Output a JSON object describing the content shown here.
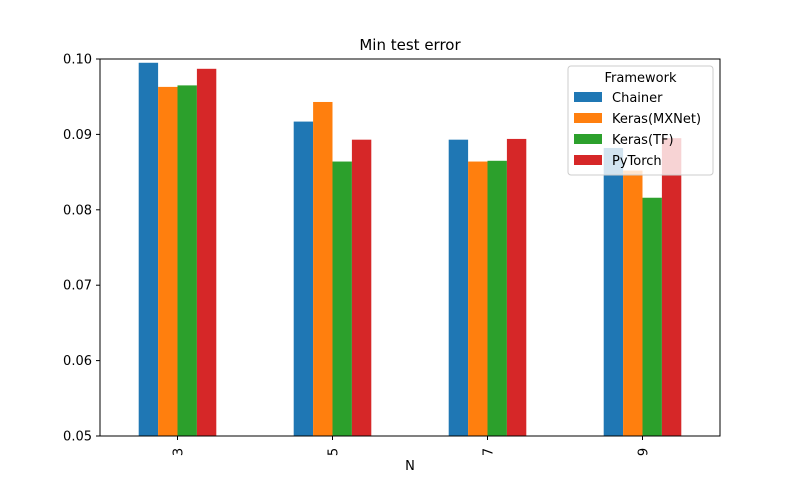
{
  "chart_data": {
    "type": "bar",
    "title": "Min test error",
    "xlabel": "N",
    "ylabel": "",
    "categories": [
      "3",
      "5",
      "7",
      "9"
    ],
    "ylim": [
      0.05,
      0.1
    ],
    "yticks": [
      "0.05",
      "0.06",
      "0.07",
      "0.08",
      "0.09",
      "0.10"
    ],
    "legend_title": "Framework",
    "legend_position": "top-right",
    "grid": false,
    "series": [
      {
        "name": "Chainer",
        "color": "#1f77b4",
        "values": [
          0.0995,
          0.0917,
          0.0893,
          0.0882
        ]
      },
      {
        "name": "Keras(MXNet)",
        "color": "#ff7f0e",
        "values": [
          0.0963,
          0.0943,
          0.0864,
          0.0852
        ]
      },
      {
        "name": "Keras(TF)",
        "color": "#2ca02c",
        "values": [
          0.0965,
          0.0864,
          0.0865,
          0.0816
        ]
      },
      {
        "name": "PyTorch",
        "color": "#d62728",
        "values": [
          0.0987,
          0.0893,
          0.0894,
          0.0895
        ]
      }
    ]
  }
}
